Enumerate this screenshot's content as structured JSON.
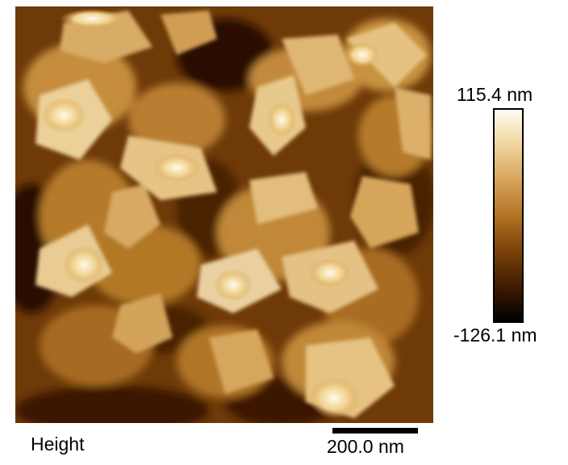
{
  "image": {
    "subject": "afm-height-map"
  },
  "colorbar": {
    "max_label": "115.4 nm",
    "min_label": "-126.1 nm",
    "colors": [
      "#000000",
      "#7a420a",
      "#b27323",
      "#d9a85f",
      "#fffdf2"
    ]
  },
  "channel_label": "Height",
  "scalebar": {
    "label": "200.0 nm"
  }
}
